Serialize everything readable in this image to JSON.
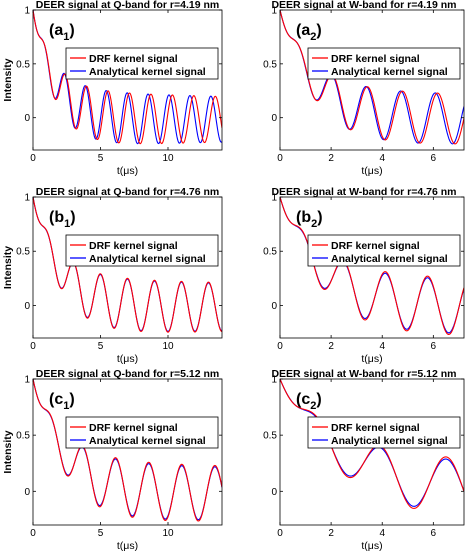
{
  "chart_data": [
    {
      "type": "line",
      "title": "DEER signal at Q-band for r=4.19 nm",
      "panel_label": {
        "main": "(a",
        "sub": "1",
        "close": ")"
      },
      "xlabel": "t(μs)",
      "ylabel": "Intensity",
      "xlim": [
        0,
        14
      ],
      "ylim": [
        -0.3,
        1.0
      ],
      "xticks": [
        0,
        5,
        10
      ],
      "yticks": [
        0,
        0.5,
        1
      ],
      "legend_position": "top-right",
      "signal": {
        "period": 1.55,
        "phase": 0.25,
        "damping": 1.55,
        "amplitude": 0.265,
        "offset": -0.015,
        "decay": 0.016
      },
      "series": [
        {
          "name": "DRF kernel signal",
          "color": "#ff0000",
          "period_scale": 1.025,
          "amp_scale": 1.0
        },
        {
          "name": "Analytical kernel signal",
          "color": "#0000ff",
          "period_scale": 1.0,
          "amp_scale": 1.0
        }
      ]
    },
    {
      "type": "line",
      "title": "DEER signal at W-band for r=4.19 nm",
      "panel_label": {
        "main": "(a",
        "sub": "2",
        "close": ")"
      },
      "xlabel": "t(μs)",
      "ylabel": "",
      "xlim": [
        0,
        7.2
      ],
      "ylim": [
        -0.3,
        1.0
      ],
      "xticks": [
        0,
        2,
        4,
        6
      ],
      "yticks": [
        0,
        0.5,
        1
      ],
      "legend_position": "top-right",
      "signal": {
        "period": 1.35,
        "phase": 0.3,
        "damping": 1.3,
        "amplitude": 0.26,
        "offset": -0.015,
        "decay": 0.015
      },
      "series": [
        {
          "name": "DRF kernel signal",
          "color": "#ff0000",
          "period_scale": 1.015,
          "amp_scale": 1.0
        },
        {
          "name": "Analytical kernel signal",
          "color": "#0000ff",
          "period_scale": 1.0,
          "amp_scale": 1.0
        }
      ]
    },
    {
      "type": "line",
      "title": "DEER signal at Q-band for r=4.76 nm",
      "panel_label": {
        "main": "(b",
        "sub": "1",
        "close": ")"
      },
      "xlabel": "t(μs)",
      "ylabel": "Intensity",
      "xlim": [
        0,
        14
      ],
      "ylim": [
        -0.3,
        1.0
      ],
      "xticks": [
        0,
        5,
        10
      ],
      "yticks": [
        0,
        0.5,
        1
      ],
      "legend_position": "top-right",
      "signal": {
        "period": 2.0,
        "phase": 0.3,
        "damping": 1.9,
        "amplitude": 0.26,
        "offset": -0.015,
        "decay": 0.012
      },
      "series": [
        {
          "name": "DRF kernel signal",
          "color": "#ff0000",
          "period_scale": 1.0,
          "amp_scale": 1.03
        },
        {
          "name": "Analytical kernel signal",
          "color": "#0000ff",
          "period_scale": 1.0,
          "amp_scale": 1.0
        }
      ]
    },
    {
      "type": "line",
      "title": "DEER signal at W-band for r=4.76 nm",
      "panel_label": {
        "main": "(b",
        "sub": "2",
        "close": ")"
      },
      "xlabel": "t(μs)",
      "ylabel": "",
      "xlim": [
        0,
        7.2
      ],
      "ylim": [
        -0.3,
        1.0
      ],
      "xticks": [
        0,
        2,
        4,
        6
      ],
      "yticks": [
        0,
        0.5,
        1
      ],
      "legend_position": "top-right",
      "signal": {
        "period": 1.65,
        "phase": 0.35,
        "damping": 1.6,
        "amplitude": 0.27,
        "offset": -0.02,
        "decay": 0.01
      },
      "series": [
        {
          "name": "DRF kernel signal",
          "color": "#ff0000",
          "period_scale": 1.0,
          "amp_scale": 1.06
        },
        {
          "name": "Analytical kernel signal",
          "color": "#0000ff",
          "period_scale": 1.0,
          "amp_scale": 1.0
        }
      ]
    },
    {
      "type": "line",
      "title": "DEER signal at Q-band for r=5.12 nm",
      "panel_label": {
        "main": "(c",
        "sub": "1",
        "close": ")"
      },
      "xlabel": "t(μs)",
      "ylabel": "Intensity",
      "xlim": [
        0,
        14
      ],
      "ylim": [
        -0.3,
        1.0
      ],
      "xticks": [
        0,
        5,
        10
      ],
      "yticks": [
        0,
        0.5,
        1
      ],
      "legend_position": "top-right",
      "signal": {
        "period": 2.45,
        "phase": 0.35,
        "damping": 2.3,
        "amplitude": 0.27,
        "offset": -0.02,
        "decay": 0.01
      },
      "series": [
        {
          "name": "DRF kernel signal",
          "color": "#ff0000",
          "period_scale": 1.0,
          "amp_scale": 1.05
        },
        {
          "name": "Analytical kernel signal",
          "color": "#0000ff",
          "period_scale": 1.0,
          "amp_scale": 1.0
        }
      ]
    },
    {
      "type": "line",
      "title": "DEER signal at W-band for r=5.12 nm",
      "panel_label": {
        "main": "(c",
        "sub": "2",
        "close": ")"
      },
      "xlabel": "t(μs)",
      "ylabel": "",
      "xlim": [
        0,
        7.2
      ],
      "ylim": [
        -0.3,
        1.0
      ],
      "xticks": [
        0,
        2,
        4,
        6
      ],
      "yticks": [
        0,
        0.5,
        1
      ],
      "legend_position": "top-right",
      "signal": {
        "period": 2.6,
        "phase": 0.35,
        "damping": 2.4,
        "amplitude": 0.27,
        "offset": -0.02,
        "decay": 0.008
      },
      "series": [
        {
          "name": "DRF kernel signal",
          "color": "#ff0000",
          "period_scale": 1.0,
          "amp_scale": 1.08
        },
        {
          "name": "Analytical kernel signal",
          "color": "#0000ff",
          "period_scale": 1.0,
          "amp_scale": 1.0
        }
      ]
    }
  ]
}
